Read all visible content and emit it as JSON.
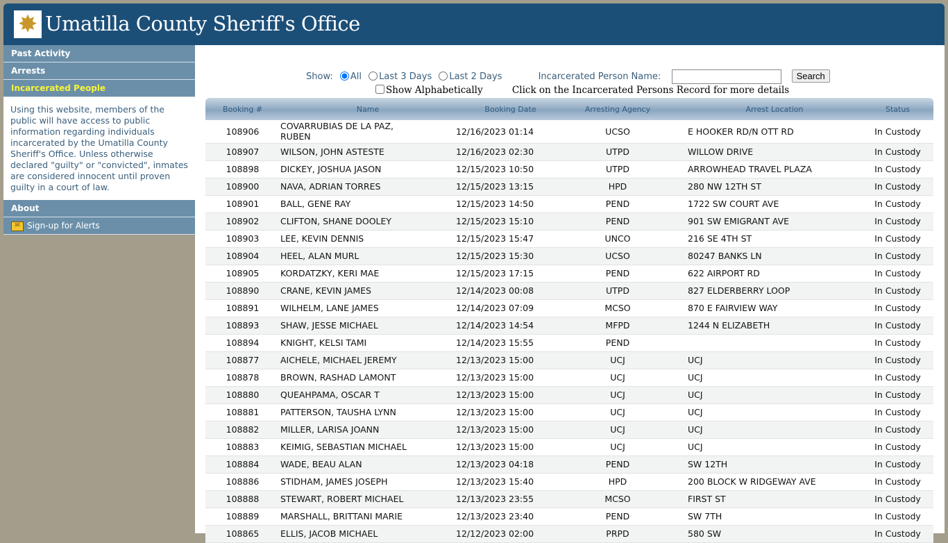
{
  "header": {
    "title": "Umatilla County Sheriff's Office",
    "logo_icon": "sheriff-star-badge"
  },
  "sidebar": {
    "items": [
      {
        "label": "Past Activity"
      },
      {
        "label": "Arrests"
      },
      {
        "label": "Incarcerated People"
      }
    ],
    "info": "Using this website, members of the public will have access to public information regarding individuals incarcerated by the Umatilla County Sheriff's Office. Unless otherwise declared \"guilty\" or \"convicted\", inmates are considered innocent until proven guilty in a court of law.",
    "about": "About",
    "alerts": "Sign-up for Alerts"
  },
  "controls": {
    "show_label": "Show:",
    "options": [
      "All",
      "Last 3 Days",
      "Last 2 Days"
    ],
    "selected": "All",
    "name_label": "Incarcerated Person Name:",
    "name_value": "",
    "search": "Search",
    "alpha_label": "Show Alphabetically",
    "hint": "Click on the Incarcerated Persons Record for more details"
  },
  "table": {
    "headers": [
      "Booking #",
      "Name",
      "Booking Date",
      "Arresting Agency",
      "Arrest Location",
      "Status"
    ],
    "rows": [
      [
        "108906",
        "COVARRUBIAS DE LA PAZ, RUBEN",
        "12/16/2023 01:14",
        "UCSO",
        "E HOOKER RD/N OTT RD",
        "In Custody"
      ],
      [
        "108907",
        "WILSON, JOHN ASTESTE",
        "12/16/2023 02:30",
        "UTPD",
        "WILLOW DRIVE",
        "In Custody"
      ],
      [
        "108898",
        "DICKEY, JOSHUA JASON",
        "12/15/2023 10:50",
        "UTPD",
        "ARROWHEAD TRAVEL PLAZA",
        "In Custody"
      ],
      [
        "108900",
        "NAVA, ADRIAN TORRES",
        "12/15/2023 13:15",
        "HPD",
        "280 NW 12TH ST",
        "In Custody"
      ],
      [
        "108901",
        "BALL, GENE RAY",
        "12/15/2023 14:50",
        "PEND",
        "1722 SW COURT AVE",
        "In Custody"
      ],
      [
        "108902",
        "CLIFTON, SHANE DOOLEY",
        "12/15/2023 15:10",
        "PEND",
        "901 SW EMIGRANT AVE",
        "In Custody"
      ],
      [
        "108903",
        "LEE, KEVIN DENNIS",
        "12/15/2023 15:47",
        "UNCO",
        "216 SE 4TH ST",
        "In Custody"
      ],
      [
        "108904",
        "HEEL, ALAN MURL",
        "12/15/2023 15:30",
        "UCSO",
        "80247 BANKS LN",
        "In Custody"
      ],
      [
        "108905",
        "KORDATZKY, KERI MAE",
        "12/15/2023 17:15",
        "PEND",
        "622 AIRPORT RD",
        "In Custody"
      ],
      [
        "108890",
        "CRANE, KEVIN JAMES",
        "12/14/2023 00:08",
        "UTPD",
        "827 ELDERBERRY LOOP",
        "In Custody"
      ],
      [
        "108891",
        "WILHELM, LANE JAMES",
        "12/14/2023 07:09",
        "MCSO",
        "870 E FAIRVIEW WAY",
        "In Custody"
      ],
      [
        "108893",
        "SHAW, JESSE MICHAEL",
        "12/14/2023 14:54",
        "MFPD",
        "1244 N ELIZABETH",
        "In Custody"
      ],
      [
        "108894",
        "KNIGHT, KELSI TAMI",
        "12/14/2023 15:55",
        "PEND",
        "",
        "In Custody"
      ],
      [
        "108877",
        "AICHELE, MICHAEL JEREMY",
        "12/13/2023 15:00",
        "UCJ",
        "UCJ",
        "In Custody"
      ],
      [
        "108878",
        "BROWN, RASHAD LAMONT",
        "12/13/2023 15:00",
        "UCJ",
        "UCJ",
        "In Custody"
      ],
      [
        "108880",
        "QUEAHPAMA, OSCAR T",
        "12/13/2023 15:00",
        "UCJ",
        "UCJ",
        "In Custody"
      ],
      [
        "108881",
        "PATTERSON, TAUSHA LYNN",
        "12/13/2023 15:00",
        "UCJ",
        "UCJ",
        "In Custody"
      ],
      [
        "108882",
        "MILLER, LARISA JOANN",
        "12/13/2023 15:00",
        "UCJ",
        "UCJ",
        "In Custody"
      ],
      [
        "108883",
        "KEIMIG, SEBASTIAN MICHAEL",
        "12/13/2023 15:00",
        "UCJ",
        "UCJ",
        "In Custody"
      ],
      [
        "108884",
        "WADE, BEAU ALAN",
        "12/13/2023 04:18",
        "PEND",
        "SW 12TH",
        "In Custody"
      ],
      [
        "108886",
        "STIDHAM, JAMES JOSEPH",
        "12/13/2023 15:40",
        "HPD",
        "200 BLOCK W RIDGEWAY AVE",
        "In Custody"
      ],
      [
        "108888",
        "STEWART, ROBERT MICHAEL",
        "12/13/2023 23:55",
        "MCSO",
        "FIRST ST",
        "In Custody"
      ],
      [
        "108889",
        "MARSHALL, BRITTANI MARIE",
        "12/13/2023 23:40",
        "PEND",
        "SW 7TH",
        "In Custody"
      ],
      [
        "108865",
        "ELLIS, JACOB MICHAEL",
        "12/12/2023 02:00",
        "PRPD",
        "580 SW",
        "In Custody"
      ]
    ]
  }
}
